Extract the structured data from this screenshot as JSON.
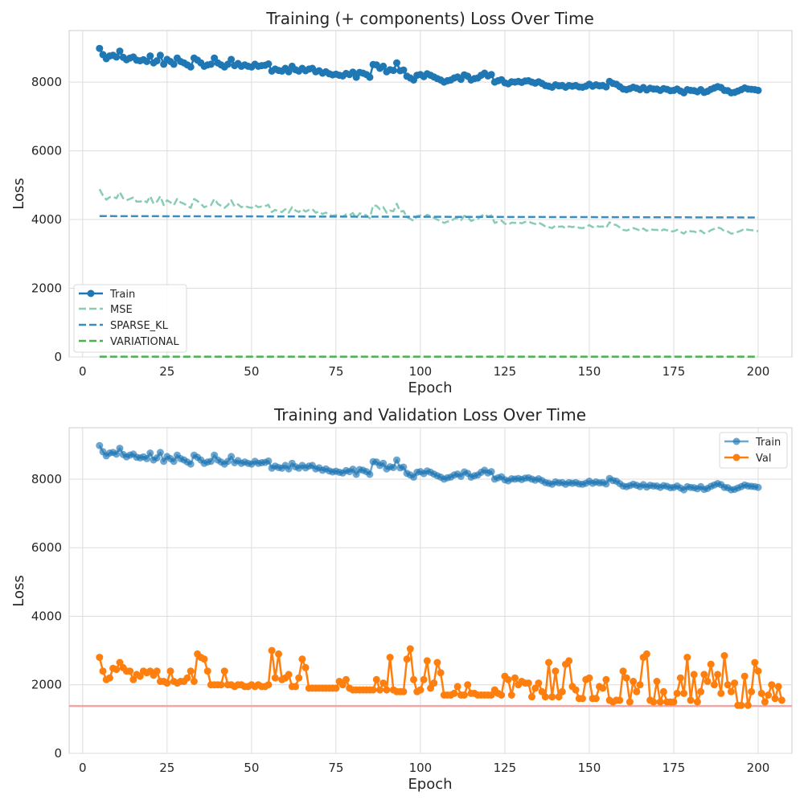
{
  "chart_data": [
    {
      "type": "line",
      "title": "Training (+ components) Loss Over Time",
      "xlabel": "Epoch",
      "ylabel": "Loss",
      "xlim": [
        -4,
        210
      ],
      "ylim": [
        0,
        9500
      ],
      "x_ticks": [
        "0",
        "25",
        "50",
        "75",
        "100",
        "125",
        "150",
        "175",
        "200"
      ],
      "x_tick_values": [
        0,
        25,
        50,
        75,
        100,
        125,
        150,
        175,
        200
      ],
      "y_ticks": [
        "0",
        "2000",
        "4000",
        "6000",
        "8000"
      ],
      "y_tick_values": [
        0,
        2000,
        4000,
        6000,
        8000
      ],
      "grid": true,
      "legend_position": "lower-left",
      "x": {
        "start": 5,
        "end": 200,
        "step": 1
      },
      "series": [
        {
          "name": "Train",
          "color": "#1f77b4",
          "style": "solid-markers",
          "values": [
            8980,
            8800,
            8680,
            8760,
            8780,
            8730,
            8900,
            8720,
            8650,
            8700,
            8730,
            8640,
            8620,
            8650,
            8600,
            8760,
            8560,
            8620,
            8780,
            8520,
            8660,
            8600,
            8520,
            8700,
            8600,
            8560,
            8500,
            8440,
            8700,
            8640,
            8560,
            8460,
            8500,
            8520,
            8700,
            8560,
            8500,
            8440,
            8520,
            8660,
            8480,
            8540,
            8460,
            8500,
            8460,
            8440,
            8520,
            8460,
            8480,
            8490,
            8530,
            8320,
            8380,
            8340,
            8320,
            8400,
            8300,
            8460,
            8360,
            8320,
            8400,
            8330,
            8380,
            8400,
            8300,
            8330,
            8260,
            8300,
            8240,
            8210,
            8230,
            8200,
            8180,
            8250,
            8220,
            8290,
            8140,
            8280,
            8260,
            8220,
            8140,
            8510,
            8500,
            8400,
            8460,
            8300,
            8360,
            8340,
            8560,
            8330,
            8350,
            8170,
            8120,
            8060,
            8200,
            8220,
            8160,
            8240,
            8200,
            8150,
            8100,
            8060,
            8000,
            8040,
            8060,
            8120,
            8150,
            8080,
            8210,
            8170,
            8060,
            8100,
            8120,
            8200,
            8260,
            8180,
            8220,
            8000,
            8040,
            8070,
            7980,
            7950,
            8010,
            8000,
            8020,
            7990,
            8030,
            8040,
            8000,
            7970,
            8010,
            7960,
            7900,
            7880,
            7850,
            7920,
            7890,
            7900,
            7850,
            7900,
            7880,
            7900,
            7860,
            7850,
            7880,
            7940,
            7880,
            7920,
            7890,
            7900,
            7860,
            8020,
            7960,
            7940,
            7870,
            7800,
            7780,
            7810,
            7850,
            7820,
            7780,
            7840,
            7770,
            7820,
            7800,
            7800,
            7760,
            7810,
            7790,
            7750,
            7760,
            7800,
            7740,
            7690,
            7780,
            7760,
            7750,
            7720,
            7780,
            7700,
            7730,
            7790,
            7830,
            7870,
            7840,
            7760,
            7750,
            7690,
            7700,
            7740,
            7780,
            7830,
            7800,
            7790,
            7780,
            7760
          ]
        },
        {
          "name": "MSE",
          "color": "#88ccb4",
          "style": "dashed",
          "values": [
            4880,
            4700,
            4580,
            4650,
            4660,
            4620,
            4800,
            4620,
            4560,
            4600,
            4640,
            4520,
            4520,
            4560,
            4500,
            4680,
            4460,
            4520,
            4680,
            4420,
            4560,
            4500,
            4420,
            4600,
            4500,
            4460,
            4400,
            4340,
            4600,
            4540,
            4460,
            4360,
            4400,
            4420,
            4600,
            4460,
            4400,
            4340,
            4420,
            4560,
            4380,
            4440,
            4360,
            4400,
            4360,
            4340,
            4420,
            4360,
            4380,
            4390,
            4430,
            4220,
            4280,
            4240,
            4220,
            4300,
            4200,
            4360,
            4260,
            4220,
            4300,
            4230,
            4280,
            4300,
            4200,
            4230,
            4160,
            4200,
            4140,
            4110,
            4130,
            4100,
            4080,
            4150,
            4120,
            4190,
            4040,
            4180,
            4160,
            4120,
            4040,
            4410,
            4400,
            4300,
            4360,
            4200,
            4260,
            4240,
            4460,
            4230,
            4250,
            4070,
            4020,
            3960,
            4100,
            4120,
            4060,
            4140,
            4100,
            4050,
            4000,
            3960,
            3900,
            3940,
            3960,
            4020,
            4050,
            3980,
            4110,
            4070,
            3960,
            4000,
            4020,
            4100,
            4160,
            4080,
            4120,
            3900,
            3940,
            3970,
            3880,
            3850,
            3910,
            3900,
            3920,
            3890,
            3930,
            3940,
            3900,
            3870,
            3910,
            3860,
            3800,
            3780,
            3750,
            3820,
            3790,
            3800,
            3750,
            3800,
            3780,
            3800,
            3760,
            3750,
            3780,
            3840,
            3780,
            3820,
            3790,
            3800,
            3760,
            3920,
            3860,
            3840,
            3770,
            3700,
            3680,
            3710,
            3750,
            3720,
            3680,
            3740,
            3670,
            3720,
            3700,
            3700,
            3660,
            3710,
            3690,
            3650,
            3660,
            3700,
            3640,
            3590,
            3680,
            3660,
            3650,
            3620,
            3680,
            3600,
            3630,
            3690,
            3730,
            3770,
            3740,
            3660,
            3650,
            3590,
            3600,
            3640,
            3680,
            3730,
            3700,
            3690,
            3680,
            3660
          ]
        },
        {
          "name": "SPARSE_KL",
          "color": "#3a8ebf",
          "style": "dashed",
          "start": 4100,
          "end": 4060
        },
        {
          "name": "VARIATIONAL",
          "color": "#4caf50",
          "style": "dashed",
          "start": 10,
          "end": 10
        }
      ]
    },
    {
      "type": "line",
      "title": "Training and Validation Loss Over Time",
      "xlabel": "Epoch",
      "ylabel": "Loss",
      "xlim": [
        -4,
        210
      ],
      "ylim": [
        0,
        9500
      ],
      "x_ticks": [
        "0",
        "25",
        "50",
        "75",
        "100",
        "125",
        "150",
        "175",
        "200"
      ],
      "x_tick_values": [
        0,
        25,
        50,
        75,
        100,
        125,
        150,
        175,
        200
      ],
      "y_ticks": [
        "0",
        "2000",
        "4000",
        "6000",
        "8000"
      ],
      "y_tick_values": [
        0,
        2000,
        4000,
        6000,
        8000
      ],
      "grid": true,
      "legend_position": "upper-right",
      "hline": {
        "y": 1380,
        "color": "#f4a6a6"
      },
      "x": {
        "start": 5,
        "end": 200,
        "step": 1
      },
      "series": [
        {
          "name": "Train",
          "color": "#1f77b4",
          "alpha": 0.65,
          "style": "solid-markers",
          "values": [
            8980,
            8800,
            8680,
            8760,
            8780,
            8730,
            8900,
            8720,
            8650,
            8700,
            8730,
            8640,
            8620,
            8650,
            8600,
            8760,
            8560,
            8620,
            8780,
            8520,
            8660,
            8600,
            8520,
            8700,
            8600,
            8560,
            8500,
            8440,
            8700,
            8640,
            8560,
            8460,
            8500,
            8520,
            8700,
            8560,
            8500,
            8440,
            8520,
            8660,
            8480,
            8540,
            8460,
            8500,
            8460,
            8440,
            8520,
            8460,
            8480,
            8490,
            8530,
            8320,
            8380,
            8340,
            8320,
            8400,
            8300,
            8460,
            8360,
            8320,
            8400,
            8330,
            8380,
            8400,
            8300,
            8330,
            8260,
            8300,
            8240,
            8210,
            8230,
            8200,
            8180,
            8250,
            8220,
            8290,
            8140,
            8280,
            8260,
            8220,
            8140,
            8510,
            8500,
            8400,
            8460,
            8300,
            8360,
            8340,
            8560,
            8330,
            8350,
            8170,
            8120,
            8060,
            8200,
            8220,
            8160,
            8240,
            8200,
            8150,
            8100,
            8060,
            8000,
            8040,
            8060,
            8120,
            8150,
            8080,
            8210,
            8170,
            8060,
            8100,
            8120,
            8200,
            8260,
            8180,
            8220,
            8000,
            8040,
            8070,
            7980,
            7950,
            8010,
            8000,
            8020,
            7990,
            8030,
            8040,
            8000,
            7970,
            8010,
            7960,
            7900,
            7880,
            7850,
            7920,
            7890,
            7900,
            7850,
            7900,
            7880,
            7900,
            7860,
            7850,
            7880,
            7940,
            7880,
            7920,
            7890,
            7900,
            7860,
            8020,
            7960,
            7940,
            7870,
            7800,
            7780,
            7810,
            7850,
            7820,
            7780,
            7840,
            7770,
            7820,
            7800,
            7800,
            7760,
            7810,
            7790,
            7750,
            7760,
            7800,
            7740,
            7690,
            7780,
            7760,
            7750,
            7720,
            7780,
            7700,
            7730,
            7790,
            7830,
            7870,
            7840,
            7760,
            7750,
            7690,
            7700,
            7740,
            7780,
            7830,
            7800,
            7790,
            7780,
            7760
          ]
        },
        {
          "name": "Val",
          "color": "#ff7f0e",
          "style": "solid-markers",
          "values": [
            2800,
            2400,
            2150,
            2200,
            2480,
            2450,
            2650,
            2500,
            2400,
            2400,
            2150,
            2300,
            2250,
            2400,
            2350,
            2400,
            2280,
            2400,
            2100,
            2100,
            2050,
            2400,
            2100,
            2050,
            2100,
            2100,
            2200,
            2400,
            2100,
            2900,
            2800,
            2750,
            2400,
            2000,
            2000,
            2000,
            2000,
            2400,
            2000,
            2000,
            1950,
            2000,
            2000,
            1950,
            1950,
            2000,
            1950,
            2000,
            1950,
            1950,
            2000,
            3000,
            2200,
            2900,
            2150,
            2200,
            2300,
            1950,
            1950,
            2200,
            2750,
            2500,
            1900,
            1900,
            1900,
            1900,
            1900,
            1900,
            1900,
            1900,
            1900,
            2100,
            2000,
            2150,
            1900,
            1850,
            1850,
            1850,
            1850,
            1850,
            1850,
            1850,
            2150,
            1850,
            2050,
            1850,
            2800,
            1850,
            1800,
            1800,
            1800,
            2750,
            3050,
            2150,
            1800,
            1850,
            2150,
            2700,
            1900,
            2050,
            2650,
            2350,
            1700,
            1700,
            1700,
            1750,
            1950,
            1700,
            1700,
            2000,
            1750,
            1750,
            1700,
            1700,
            1700,
            1700,
            1700,
            1850,
            1750,
            1700,
            2250,
            2150,
            1700,
            2200,
            2000,
            2100,
            2050,
            2050,
            1650,
            1900,
            2050,
            1800,
            1650,
            2650,
            1650,
            2400,
            1650,
            1800,
            2600,
            2700,
            1950,
            1850,
            1600,
            1600,
            2150,
            2200,
            1600,
            1600,
            1950,
            1900,
            2150,
            1550,
            1500,
            1550,
            1550,
            2400,
            2200,
            1500,
            2100,
            1800,
            2000,
            2800,
            2900,
            1550,
            1500,
            2100,
            1500,
            1800,
            1500,
            1500,
            1500,
            1750,
            2200,
            1750,
            2800,
            1550,
            2300,
            1500,
            1800,
            2300,
            2100,
            2600,
            2000,
            2300,
            1750,
            2850,
            2000,
            1800,
            2050,
            1400,
            1400,
            2250,
            1400,
            1800,
            2650,
            2400,
            1750,
            1500,
            1700,
            2000,
            1600,
            1950,
            1550
          ]
        }
      ]
    }
  ]
}
